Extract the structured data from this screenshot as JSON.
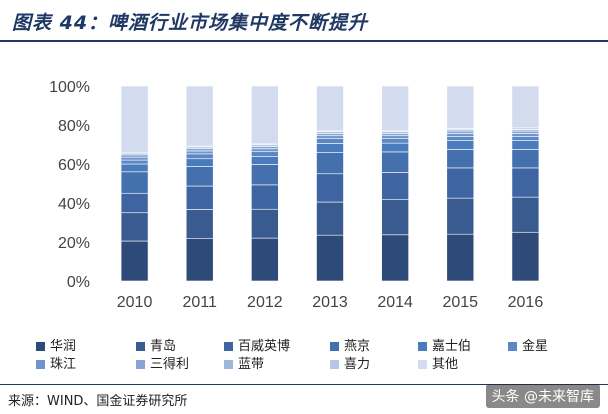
{
  "title": "图表 44：啤酒行业市场集中度不断提升",
  "source": "来源：WIND、国金证券研究所",
  "watermark": "头条 @未来智库",
  "chart_data": {
    "type": "bar",
    "stacked": true,
    "categories": [
      "2010",
      "2011",
      "2012",
      "2013",
      "2014",
      "2015",
      "2016"
    ],
    "ylim": [
      0,
      100
    ],
    "yticks": [
      "0%",
      "20%",
      "40%",
      "60%",
      "80%",
      "100%"
    ],
    "grid": false,
    "legend_position": "bottom",
    "series": [
      {
        "name": "华润",
        "color": "#2e4a78",
        "values": [
          20.5,
          21.7,
          22.0,
          23.5,
          23.7,
          24.0,
          25.0
        ]
      },
      {
        "name": "青岛",
        "color": "#3a5b8f",
        "values": [
          14.5,
          15.0,
          14.8,
          17.0,
          18.0,
          18.5,
          18.0
        ]
      },
      {
        "name": "百威英博",
        "color": "#3e65a2",
        "values": [
          10.0,
          12.0,
          12.5,
          14.5,
          14.0,
          15.5,
          15.0
        ]
      },
      {
        "name": "燕京",
        "color": "#4470ae",
        "values": [
          11.0,
          10.0,
          10.5,
          11.0,
          10.5,
          9.5,
          9.5
        ]
      },
      {
        "name": "嘉士伯",
        "color": "#4a7bbd",
        "values": [
          4.0,
          4.0,
          4.0,
          4.5,
          4.5,
          4.5,
          4.5
        ]
      },
      {
        "name": "金星",
        "color": "#5b88c4",
        "values": [
          2.0,
          2.5,
          2.5,
          2.5,
          2.3,
          2.2,
          2.2
        ]
      },
      {
        "name": "珠江",
        "color": "#6f95cb",
        "values": [
          1.5,
          1.5,
          1.5,
          1.5,
          1.5,
          1.5,
          1.5
        ]
      },
      {
        "name": "三得利",
        "color": "#87a5d4",
        "values": [
          1.2,
          1.2,
          1.2,
          1.2,
          1.2,
          1.2,
          1.2
        ]
      },
      {
        "name": "蓝带",
        "color": "#9db6dc",
        "values": [
          0.8,
          0.8,
          0.8,
          0.8,
          0.8,
          0.8,
          0.8
        ]
      },
      {
        "name": "喜力",
        "color": "#b5c7e4",
        "values": [
          0.5,
          0.5,
          0.5,
          0.5,
          0.5,
          0.5,
          0.8
        ]
      },
      {
        "name": "其他",
        "color": "#d2dcee",
        "values": [
          34.0,
          30.8,
          29.7,
          23.0,
          23.0,
          21.8,
          21.5
        ]
      }
    ]
  }
}
